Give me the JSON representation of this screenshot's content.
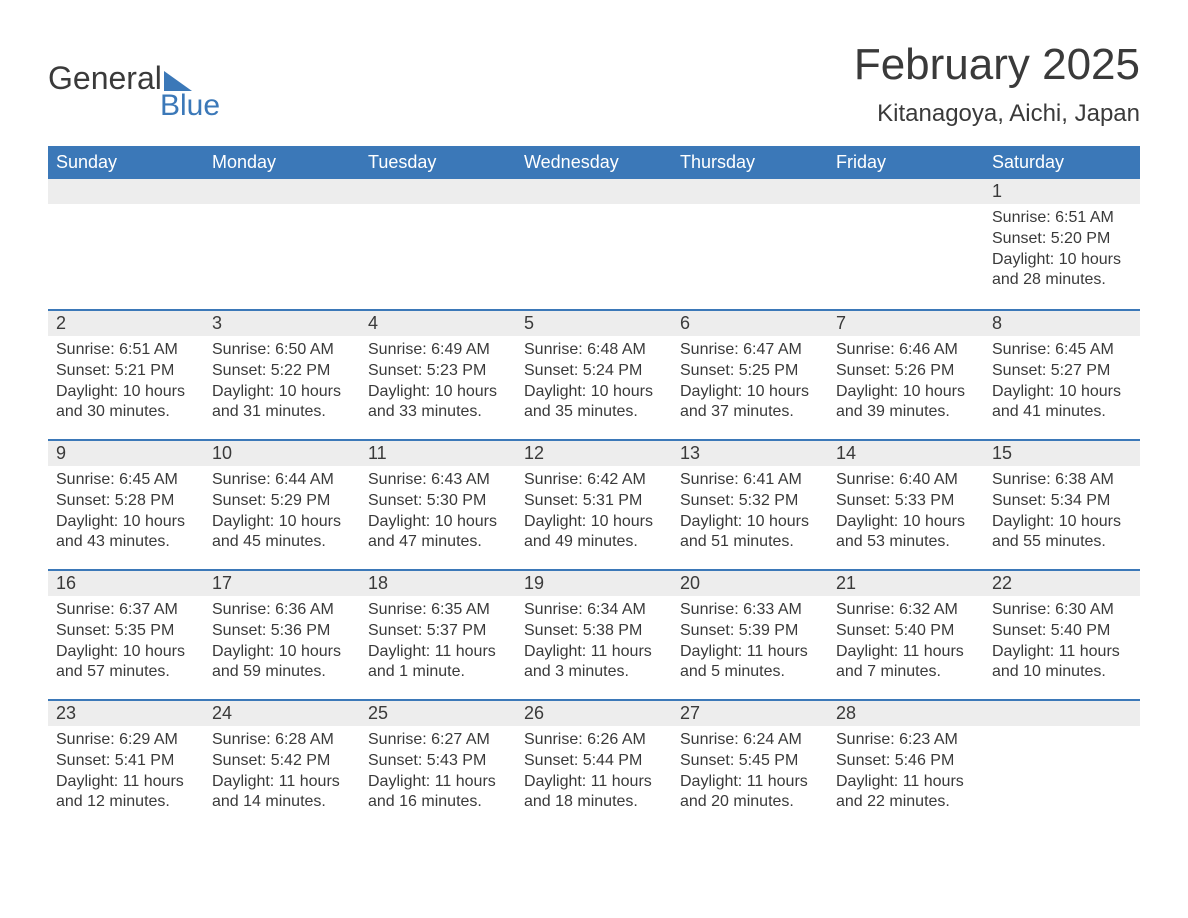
{
  "brand": {
    "name_part1": "General",
    "name_part2": "Blue",
    "accent_color": "#3b78b8"
  },
  "title": "February 2025",
  "location": "Kitanagoya, Aichi, Japan",
  "weekdays": [
    "Sunday",
    "Monday",
    "Tuesday",
    "Wednesday",
    "Thursday",
    "Friday",
    "Saturday"
  ],
  "colors": {
    "header_bg": "#3b78b8",
    "header_text": "#ffffff",
    "day_header_bg": "#ededed",
    "day_border": "#3b78b8",
    "body_text": "#3a3a3a",
    "page_bg": "#ffffff"
  },
  "typography": {
    "title_fontsize": 44,
    "location_fontsize": 24,
    "weekday_fontsize": 18,
    "daynum_fontsize": 18,
    "body_fontsize": 16
  },
  "weeks": [
    [
      {
        "day": "",
        "sunrise": "",
        "sunset": "",
        "daylight": ""
      },
      {
        "day": "",
        "sunrise": "",
        "sunset": "",
        "daylight": ""
      },
      {
        "day": "",
        "sunrise": "",
        "sunset": "",
        "daylight": ""
      },
      {
        "day": "",
        "sunrise": "",
        "sunset": "",
        "daylight": ""
      },
      {
        "day": "",
        "sunrise": "",
        "sunset": "",
        "daylight": ""
      },
      {
        "day": "",
        "sunrise": "",
        "sunset": "",
        "daylight": ""
      },
      {
        "day": "1",
        "sunrise": "Sunrise: 6:51 AM",
        "sunset": "Sunset: 5:20 PM",
        "daylight": "Daylight: 10 hours and 28 minutes."
      }
    ],
    [
      {
        "day": "2",
        "sunrise": "Sunrise: 6:51 AM",
        "sunset": "Sunset: 5:21 PM",
        "daylight": "Daylight: 10 hours and 30 minutes."
      },
      {
        "day": "3",
        "sunrise": "Sunrise: 6:50 AM",
        "sunset": "Sunset: 5:22 PM",
        "daylight": "Daylight: 10 hours and 31 minutes."
      },
      {
        "day": "4",
        "sunrise": "Sunrise: 6:49 AM",
        "sunset": "Sunset: 5:23 PM",
        "daylight": "Daylight: 10 hours and 33 minutes."
      },
      {
        "day": "5",
        "sunrise": "Sunrise: 6:48 AM",
        "sunset": "Sunset: 5:24 PM",
        "daylight": "Daylight: 10 hours and 35 minutes."
      },
      {
        "day": "6",
        "sunrise": "Sunrise: 6:47 AM",
        "sunset": "Sunset: 5:25 PM",
        "daylight": "Daylight: 10 hours and 37 minutes."
      },
      {
        "day": "7",
        "sunrise": "Sunrise: 6:46 AM",
        "sunset": "Sunset: 5:26 PM",
        "daylight": "Daylight: 10 hours and 39 minutes."
      },
      {
        "day": "8",
        "sunrise": "Sunrise: 6:45 AM",
        "sunset": "Sunset: 5:27 PM",
        "daylight": "Daylight: 10 hours and 41 minutes."
      }
    ],
    [
      {
        "day": "9",
        "sunrise": "Sunrise: 6:45 AM",
        "sunset": "Sunset: 5:28 PM",
        "daylight": "Daylight: 10 hours and 43 minutes."
      },
      {
        "day": "10",
        "sunrise": "Sunrise: 6:44 AM",
        "sunset": "Sunset: 5:29 PM",
        "daylight": "Daylight: 10 hours and 45 minutes."
      },
      {
        "day": "11",
        "sunrise": "Sunrise: 6:43 AM",
        "sunset": "Sunset: 5:30 PM",
        "daylight": "Daylight: 10 hours and 47 minutes."
      },
      {
        "day": "12",
        "sunrise": "Sunrise: 6:42 AM",
        "sunset": "Sunset: 5:31 PM",
        "daylight": "Daylight: 10 hours and 49 minutes."
      },
      {
        "day": "13",
        "sunrise": "Sunrise: 6:41 AM",
        "sunset": "Sunset: 5:32 PM",
        "daylight": "Daylight: 10 hours and 51 minutes."
      },
      {
        "day": "14",
        "sunrise": "Sunrise: 6:40 AM",
        "sunset": "Sunset: 5:33 PM",
        "daylight": "Daylight: 10 hours and 53 minutes."
      },
      {
        "day": "15",
        "sunrise": "Sunrise: 6:38 AM",
        "sunset": "Sunset: 5:34 PM",
        "daylight": "Daylight: 10 hours and 55 minutes."
      }
    ],
    [
      {
        "day": "16",
        "sunrise": "Sunrise: 6:37 AM",
        "sunset": "Sunset: 5:35 PM",
        "daylight": "Daylight: 10 hours and 57 minutes."
      },
      {
        "day": "17",
        "sunrise": "Sunrise: 6:36 AM",
        "sunset": "Sunset: 5:36 PM",
        "daylight": "Daylight: 10 hours and 59 minutes."
      },
      {
        "day": "18",
        "sunrise": "Sunrise: 6:35 AM",
        "sunset": "Sunset: 5:37 PM",
        "daylight": "Daylight: 11 hours and 1 minute."
      },
      {
        "day": "19",
        "sunrise": "Sunrise: 6:34 AM",
        "sunset": "Sunset: 5:38 PM",
        "daylight": "Daylight: 11 hours and 3 minutes."
      },
      {
        "day": "20",
        "sunrise": "Sunrise: 6:33 AM",
        "sunset": "Sunset: 5:39 PM",
        "daylight": "Daylight: 11 hours and 5 minutes."
      },
      {
        "day": "21",
        "sunrise": "Sunrise: 6:32 AM",
        "sunset": "Sunset: 5:40 PM",
        "daylight": "Daylight: 11 hours and 7 minutes."
      },
      {
        "day": "22",
        "sunrise": "Sunrise: 6:30 AM",
        "sunset": "Sunset: 5:40 PM",
        "daylight": "Daylight: 11 hours and 10 minutes."
      }
    ],
    [
      {
        "day": "23",
        "sunrise": "Sunrise: 6:29 AM",
        "sunset": "Sunset: 5:41 PM",
        "daylight": "Daylight: 11 hours and 12 minutes."
      },
      {
        "day": "24",
        "sunrise": "Sunrise: 6:28 AM",
        "sunset": "Sunset: 5:42 PM",
        "daylight": "Daylight: 11 hours and 14 minutes."
      },
      {
        "day": "25",
        "sunrise": "Sunrise: 6:27 AM",
        "sunset": "Sunset: 5:43 PM",
        "daylight": "Daylight: 11 hours and 16 minutes."
      },
      {
        "day": "26",
        "sunrise": "Sunrise: 6:26 AM",
        "sunset": "Sunset: 5:44 PM",
        "daylight": "Daylight: 11 hours and 18 minutes."
      },
      {
        "day": "27",
        "sunrise": "Sunrise: 6:24 AM",
        "sunset": "Sunset: 5:45 PM",
        "daylight": "Daylight: 11 hours and 20 minutes."
      },
      {
        "day": "28",
        "sunrise": "Sunrise: 6:23 AM",
        "sunset": "Sunset: 5:46 PM",
        "daylight": "Daylight: 11 hours and 22 minutes."
      },
      {
        "day": "",
        "sunrise": "",
        "sunset": "",
        "daylight": ""
      }
    ]
  ]
}
